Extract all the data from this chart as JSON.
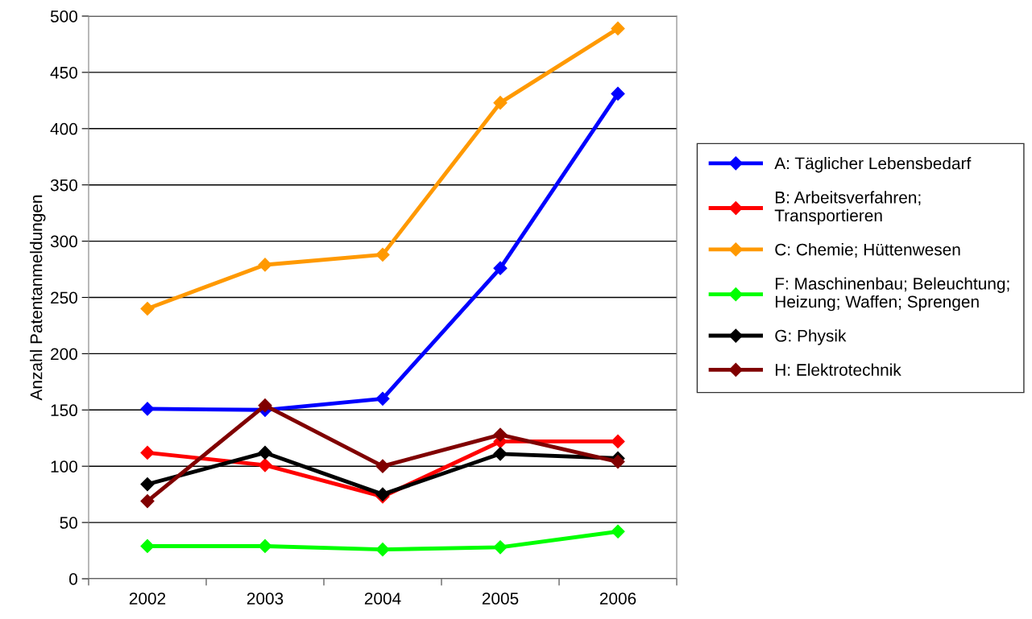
{
  "chart_data": {
    "type": "line",
    "ylabel": "Anzahl Patentanmeldungen",
    "categories": [
      "2002",
      "2003",
      "2004",
      "2005",
      "2006"
    ],
    "series": [
      {
        "name": "A: Täglicher Lebensbedarf",
        "color": "#0000ff",
        "values": [
          151,
          150,
          160,
          276,
          431
        ]
      },
      {
        "name": "B: Arbeitsverfahren;\nTransportieren",
        "color": "#ff0000",
        "values": [
          112,
          101,
          73,
          122,
          122
        ]
      },
      {
        "name": "C: Chemie; Hüttenwesen",
        "color": "#ff9900",
        "values": [
          240,
          279,
          288,
          423,
          489
        ]
      },
      {
        "name": "F: Maschinenbau; Beleuchtung;\nHeizung; Waffen; Sprengen",
        "color": "#00ff00",
        "values": [
          29,
          29,
          26,
          28,
          42
        ]
      },
      {
        "name": "G: Physik",
        "color": "#000000",
        "values": [
          84,
          112,
          75,
          111,
          107
        ]
      },
      {
        "name": "H: Elektrotechnik",
        "color": "#800000",
        "values": [
          69,
          154,
          100,
          128,
          104
        ]
      }
    ],
    "ylim": [
      0,
      500
    ],
    "yticks": [
      0,
      50,
      100,
      150,
      200,
      250,
      300,
      350,
      400,
      450,
      500
    ],
    "grid": "y",
    "legend": "right",
    "marker": "diamond",
    "line_style": "solid"
  }
}
